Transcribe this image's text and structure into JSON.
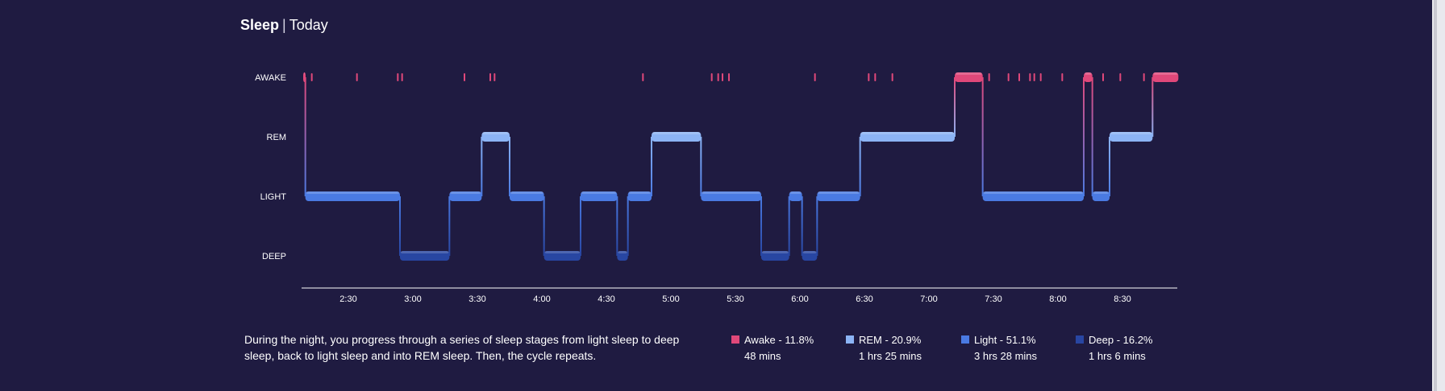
{
  "header": {
    "title": "Sleep",
    "separator": "|",
    "subtitle": "Today"
  },
  "chart_data": {
    "type": "step-line",
    "stages": [
      "AWAKE",
      "REM",
      "LIGHT",
      "DEEP"
    ],
    "x_ticks": [
      "2:30",
      "3:00",
      "3:30",
      "4:00",
      "4:30",
      "5:00",
      "5:30",
      "6:00",
      "6:30",
      "7:00",
      "7:30",
      "8:00",
      "8:30"
    ],
    "x_range": [
      "2:09",
      "8:36"
    ],
    "segments": [
      {
        "start": "2:09",
        "end": "2:10",
        "stage": "AWAKE"
      },
      {
        "start": "2:10",
        "end": "2:54",
        "stage": "LIGHT"
      },
      {
        "start": "2:54",
        "end": "3:17",
        "stage": "DEEP"
      },
      {
        "start": "3:17",
        "end": "3:32",
        "stage": "LIGHT"
      },
      {
        "start": "3:32",
        "end": "3:45",
        "stage": "REM"
      },
      {
        "start": "3:45",
        "end": "4:01",
        "stage": "LIGHT"
      },
      {
        "start": "4:01",
        "end": "4:18",
        "stage": "DEEP"
      },
      {
        "start": "4:18",
        "end": "4:35",
        "stage": "LIGHT"
      },
      {
        "start": "4:35",
        "end": "4:40",
        "stage": "DEEP"
      },
      {
        "start": "4:40",
        "end": "4:51",
        "stage": "LIGHT"
      },
      {
        "start": "4:51",
        "end": "5:14",
        "stage": "REM"
      },
      {
        "start": "5:14",
        "end": "5:42",
        "stage": "LIGHT"
      },
      {
        "start": "5:42",
        "end": "5:55",
        "stage": "DEEP"
      },
      {
        "start": "5:55",
        "end": "6:01",
        "stage": "LIGHT"
      },
      {
        "start": "6:01",
        "end": "6:08",
        "stage": "DEEP"
      },
      {
        "start": "6:08",
        "end": "6:28",
        "stage": "LIGHT"
      },
      {
        "start": "6:28",
        "end": "7:12",
        "stage": "REM"
      },
      {
        "start": "7:12",
        "end": "7:25",
        "stage": "AWAKE"
      },
      {
        "start": "7:25",
        "end": "8:12",
        "stage": "LIGHT"
      },
      {
        "start": "8:12",
        "end": "8:16",
        "stage": "AWAKE"
      },
      {
        "start": "8:16",
        "end": "8:24",
        "stage": "LIGHT"
      },
      {
        "start": "8:24",
        "end": "8:44",
        "stage": "REM"
      },
      {
        "start": "8:44",
        "end": "8:56",
        "stage": "AWAKE"
      }
    ],
    "brief_awake_marks": [
      "2:13",
      "2:34",
      "2:53",
      "2:55",
      "3:24",
      "3:36",
      "3:38",
      "4:47",
      "5:19",
      "5:22",
      "5:24",
      "5:27",
      "6:07",
      "6:32",
      "6:35",
      "6:43",
      "7:28",
      "7:37",
      "7:42",
      "7:47",
      "7:49",
      "7:52",
      "8:02",
      "8:21",
      "8:29",
      "8:40"
    ],
    "colors": {
      "awake": "#e0487a",
      "rem": "#8cb4f5",
      "light": "#4a7ae2",
      "deep": "#2846a2"
    }
  },
  "description": "During the night, you progress through a series of sleep stages from light sleep to deep sleep, back to light sleep and into REM sleep. Then, the cycle repeats.",
  "legend": [
    {
      "label": "Awake - 11.8%",
      "duration": "48 mins",
      "color": "#e0487a"
    },
    {
      "label": "REM - 20.9%",
      "duration": "1 hrs 25 mins",
      "color": "#8cb4f5"
    },
    {
      "label": "Light - 51.1%",
      "duration": "3 hrs 28 mins",
      "color": "#4a7ae2"
    },
    {
      "label": "Deep - 16.2%",
      "duration": "1 hrs 6 mins",
      "color": "#2846a2"
    }
  ]
}
